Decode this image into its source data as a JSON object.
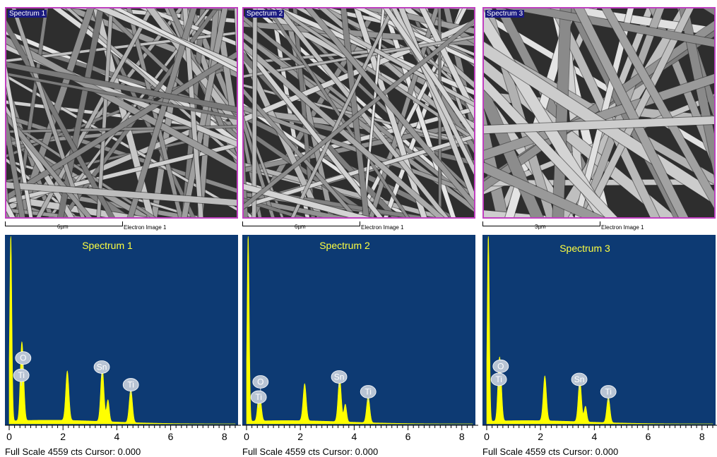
{
  "panels": [
    {
      "image_label": "Spectrum 1",
      "scale_label": "6µm",
      "image_caption": "Electron Image 1",
      "scale_frac": 0.5,
      "footer": "Full Scale 4559 cts Cursor: 0.000"
    },
    {
      "image_label": "Spectrum 2",
      "scale_label": "6µm",
      "image_caption": "Electron Image 1",
      "scale_frac": 0.5,
      "footer": "Full Scale 4559 cts Cursor: 0.000"
    },
    {
      "image_label": "Spectrum 3",
      "scale_label": "3µm",
      "image_caption": "Electron Image 1",
      "scale_frac": 0.5,
      "footer": "Full Scale 4559 cts Cursor: 0.000"
    }
  ],
  "colors": {
    "plot_bg": "#0d3a73",
    "spectrum_fill": "#ffff00",
    "title_color": "#ffff40",
    "sem_border": "#c040c0",
    "badge_fill": "#b8c4d4"
  },
  "chart_data": [
    {
      "type": "area",
      "title": "Spectrum 1",
      "xlabel": "",
      "ylabel": "",
      "xlim": [
        0,
        8.4
      ],
      "ylim": [
        0,
        4559
      ],
      "xticks": [
        "0",
        "2",
        "4",
        "6",
        "8"
      ],
      "full_scale_counts": 4559,
      "peaks": [
        {
          "x": 0.06,
          "y": 4559,
          "width": 0.04
        },
        {
          "x": 0.45,
          "y": 1450,
          "width": 0.05
        },
        {
          "x": 0.52,
          "y": 950,
          "width": 0.05
        },
        {
          "x": 2.16,
          "y": 1200,
          "width": 0.06
        },
        {
          "x": 3.46,
          "y": 1330,
          "width": 0.06
        },
        {
          "x": 3.67,
          "y": 530,
          "width": 0.05
        },
        {
          "x": 4.52,
          "y": 820,
          "width": 0.06
        }
      ],
      "labels": [
        {
          "element": "O",
          "x": 0.52,
          "y": 1600
        },
        {
          "element": "Ti",
          "x": 0.45,
          "y": 1180
        },
        {
          "element": "Sn",
          "x": 3.44,
          "y": 1380
        },
        {
          "element": "Ti",
          "x": 4.52,
          "y": 950
        }
      ],
      "baseline": 90
    },
    {
      "type": "area",
      "title": "Spectrum 2",
      "xlabel": "",
      "ylabel": "",
      "xlim": [
        0,
        8.4
      ],
      "ylim": [
        0,
        4559
      ],
      "xticks": [
        "0",
        "2",
        "4",
        "6",
        "8"
      ],
      "full_scale_counts": 4559,
      "peaks": [
        {
          "x": 0.06,
          "y": 4559,
          "width": 0.04
        },
        {
          "x": 0.45,
          "y": 520,
          "width": 0.05
        },
        {
          "x": 0.52,
          "y": 380,
          "width": 0.05
        },
        {
          "x": 2.16,
          "y": 900,
          "width": 0.06
        },
        {
          "x": 3.46,
          "y": 1080,
          "width": 0.06
        },
        {
          "x": 3.67,
          "y": 430,
          "width": 0.05
        },
        {
          "x": 4.52,
          "y": 640,
          "width": 0.06
        }
      ],
      "labels": [
        {
          "element": "O",
          "x": 0.52,
          "y": 1020
        },
        {
          "element": "Ti",
          "x": 0.45,
          "y": 650
        },
        {
          "element": "Sn",
          "x": 3.44,
          "y": 1140
        },
        {
          "element": "Ti",
          "x": 4.52,
          "y": 780
        }
      ],
      "baseline": 80
    },
    {
      "type": "area",
      "title": "Spectrum 3",
      "xlabel": "",
      "ylabel": "",
      "xlim": [
        0,
        8.4
      ],
      "ylim": [
        0,
        4559
      ],
      "xticks": [
        "0",
        "2",
        "4",
        "6",
        "8"
      ],
      "full_scale_counts": 4559,
      "peaks": [
        {
          "x": 0.06,
          "y": 4559,
          "width": 0.04
        },
        {
          "x": 0.45,
          "y": 1080,
          "width": 0.05
        },
        {
          "x": 0.52,
          "y": 900,
          "width": 0.05
        },
        {
          "x": 2.16,
          "y": 1090,
          "width": 0.06
        },
        {
          "x": 3.46,
          "y": 1030,
          "width": 0.06
        },
        {
          "x": 3.67,
          "y": 380,
          "width": 0.05
        },
        {
          "x": 4.52,
          "y": 620,
          "width": 0.06
        }
      ],
      "labels": [
        {
          "element": "O",
          "x": 0.52,
          "y": 1400
        },
        {
          "element": "Ti",
          "x": 0.45,
          "y": 1080
        },
        {
          "element": "Sn",
          "x": 3.44,
          "y": 1080
        },
        {
          "element": "Ti",
          "x": 4.52,
          "y": 780
        }
      ],
      "baseline": 80
    }
  ]
}
